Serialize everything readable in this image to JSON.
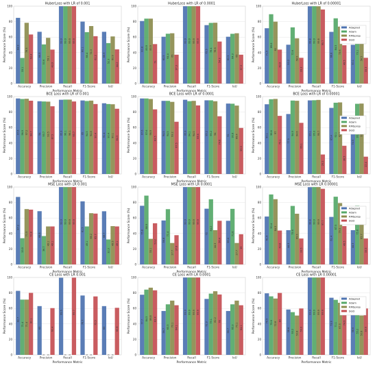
{
  "colors": {
    "Adagrad": "#4c72b0",
    "Adam": "#55a868",
    "RMSprop": "#8c8c4e",
    "SGD": "#c44e52"
  },
  "chart_data": [
    {
      "type": "bar",
      "title": "HuberLoss with LR of 0.001",
      "xlabel": "Performance Metric",
      "ylabel": "Performance Score (%)",
      "ylim": [
        0,
        100
      ],
      "yticks": [
        0,
        20,
        40,
        60,
        80,
        100
      ],
      "categories": [
        "Accuracy",
        "Precision",
        "Recall",
        "F1-Score",
        "IoU"
      ],
      "legend": false,
      "series": [
        {
          "name": "Adagrad",
          "values": [
            84.9,
            66.9,
            99.9,
            80.1,
            66.9
          ]
        },
        {
          "name": "Adam",
          "values": [
            33.1,
            50.6,
            99.9,
            66.4,
            52.3
          ]
        },
        {
          "name": "RMSprop",
          "values": [
            78.5,
            59.1,
            99.9,
            74.3,
            60.9
          ]
        },
        {
          "name": "SGD",
          "values": [
            63.4,
            43.9,
            99.9,
            61.2,
            44.2
          ]
        }
      ]
    },
    {
      "type": "bar",
      "title": "HuberLoss with LR of 0.0001",
      "xlabel": "Performance Metric",
      "ylabel": "Performance Score (%)",
      "ylim": [
        0,
        100
      ],
      "yticks": [
        0,
        20,
        40,
        60,
        80,
        100
      ],
      "categories": [
        "Accuracy",
        "Precision",
        "Recall",
        "F1-Score",
        "IoU"
      ],
      "legend": false,
      "series": [
        {
          "name": "Adagrad",
          "values": [
            80.8,
            60.5,
            99.9,
            75.5,
            60.5
          ]
        },
        {
          "name": "Adam",
          "values": [
            83.9,
            64.4,
            99.9,
            78.4,
            64.3
          ]
        },
        {
          "name": "RMSprop",
          "values": [
            83.9,
            65.0,
            99.9,
            78.6,
            65.0
          ]
        },
        {
          "name": "SGD",
          "values": [
            51.0,
            37.3,
            99.9,
            54.3,
            37.3
          ]
        }
      ]
    },
    {
      "type": "bar",
      "title": "HuberLoss with LR of 0.00001",
      "xlabel": "Performance Metric",
      "ylabel": "Performance Score (%)",
      "ylim": [
        0,
        100
      ],
      "yticks": [
        0,
        20,
        40,
        60,
        80,
        100
      ],
      "categories": [
        "Accuracy",
        "Precision",
        "Recall",
        "F1-Score",
        "IoU"
      ],
      "legend": true,
      "series": [
        {
          "name": "Adagrad",
          "values": [
            71.5,
            50.2,
            99.8,
            66.8,
            50.1
          ]
        },
        {
          "name": "Adam",
          "values": [
            89.6,
            72.6,
            99.9,
            84.3,
            73.1
          ]
        },
        {
          "name": "RMSprop",
          "values": [
            80.0,
            58.5,
            99.8,
            73.6,
            58.5
          ]
        },
        {
          "name": "SGD",
          "values": [
            43.9,
            33.3,
            95.7,
            49.5,
            33.3
          ]
        }
      ]
    },
    {
      "type": "bar",
      "title": "BCE Loss with LR of 0.001",
      "xlabel": "Performance Metric",
      "ylabel": "Performance Score (%)",
      "ylim": [
        0,
        100
      ],
      "yticks": [
        0,
        20,
        40,
        60,
        80,
        100
      ],
      "categories": [
        "Accuracy",
        "Precision",
        "Recall",
        "F1-Score",
        "IoU"
      ],
      "legend": false,
      "series": [
        {
          "name": "Adagrad",
          "values": [
            97.6,
            94.0,
            95.9,
            95.0,
            91.4
          ]
        },
        {
          "name": "Adam",
          "values": [
            96.9,
            93.7,
            96.1,
            94.3,
            90.4
          ]
        },
        {
          "name": "RMSprop",
          "values": [
            97.2,
            93.5,
            96.1,
            94.8,
            90.1
          ]
        },
        {
          "name": "SGD",
          "values": [
            94.7,
            87.5,
            93.7,
            90.4,
            84.3
          ]
        }
      ]
    },
    {
      "type": "bar",
      "title": "BCE Loss with LR of 0.0001",
      "xlabel": "Performance Metric",
      "ylabel": "Performance Score (%)",
      "ylim": [
        0,
        100
      ],
      "yticks": [
        0,
        20,
        40,
        60,
        80,
        100
      ],
      "categories": [
        "Accuracy",
        "Precision",
        "Recall",
        "F1-Score",
        "IoU"
      ],
      "legend": false,
      "series": [
        {
          "name": "Adagrad",
          "values": [
            97.6,
            94.5,
            95.9,
            95.2,
            91.0
          ]
        },
        {
          "name": "Adam",
          "values": [
            97.6,
            94.5,
            94.1,
            95.2,
            90.8
          ]
        },
        {
          "name": "RMSprop",
          "values": [
            96.9,
            93.2,
            94.5,
            94.0,
            88.4
          ]
        },
        {
          "name": "SGD",
          "values": [
            83.5,
            67.5,
            88.6,
            74.6,
            59.5
          ]
        }
      ]
    },
    {
      "type": "bar",
      "title": "BCE Loss with LR of 0.00001",
      "xlabel": "Performance Metric",
      "ylabel": "Performance Score (%)",
      "ylim": [
        0,
        100
      ],
      "yticks": [
        0,
        20,
        40,
        60,
        80,
        100
      ],
      "categories": [
        "Accuracy",
        "Precision",
        "Recall",
        "F1-Score",
        "IoU"
      ],
      "legend": true,
      "series": [
        {
          "name": "Adagrad",
          "values": [
            90.1,
            77.5,
            95.1,
            85.4,
            74.5
          ]
        },
        {
          "name": "Adam",
          "values": [
            96.6,
            94.9,
            95.3,
            92.1,
            90.7
          ]
        },
        {
          "name": "RMSprop",
          "values": [
            97.0,
            94.6,
            95.7,
            92.5,
            91.0
          ]
        },
        {
          "name": "SGD",
          "values": [
            75.1,
            66.1,
            25.2,
            36.5,
            22.4
          ]
        }
      ]
    },
    {
      "type": "bar",
      "title": "MSE Loss with LR 0.001",
      "xlabel": "Performance Metric",
      "ylabel": "Performance Score (%)",
      "ylim": [
        0,
        100
      ],
      "yticks": [
        0,
        20,
        40,
        60,
        80,
        100
      ],
      "categories": [
        "Accuracy",
        "Precision",
        "Recall",
        "F1-Score",
        "IoU"
      ],
      "legend": false,
      "series": [
        {
          "name": "Adagrad",
          "values": [
            87.2,
            68.8,
            99.9,
            81.5,
            68.7
          ]
        },
        {
          "name": "Adam",
          "values": [
            33.9,
            36.7,
            99.9,
            49.1,
            32.3
          ]
        },
        {
          "name": "RMSprop",
          "values": [
            71.5,
            49.1,
            99.9,
            66.2,
            49.5
          ]
        },
        {
          "name": "SGD",
          "values": [
            70.8,
            49.1,
            99.9,
            65.7,
            49.1
          ]
        }
      ]
    },
    {
      "type": "bar",
      "title": "MSE Loss with LR 0.0001",
      "xlabel": "Performance Metric",
      "ylabel": "Performance Score (%)",
      "ylim": [
        0,
        100
      ],
      "yticks": [
        0,
        20,
        40,
        60,
        80,
        100
      ],
      "categories": [
        "Accuracy",
        "Precision",
        "Recall",
        "F1-Score",
        "IoU"
      ],
      "legend": false,
      "series": [
        {
          "name": "Adagrad",
          "values": [
            75.8,
            56.8,
            99.9,
            72.0,
            56.4
          ]
        },
        {
          "name": "Adam",
          "values": [
            88.9,
            71.4,
            99.9,
            84.2,
            71.8
          ]
        },
        {
          "name": "RMSprop",
          "values": [
            33.1,
            27.7,
            99.9,
            44.3,
            27.7
          ]
        },
        {
          "name": "SGD",
          "values": [
            53.2,
            37.8,
            99.9,
            56.4,
            39.0
          ]
        }
      ]
    },
    {
      "type": "bar",
      "title": "MSE Loss with LR 0.00001",
      "xlabel": "Performance Metric",
      "ylabel": "Performance Score (%)",
      "ylim": [
        0,
        100
      ],
      "yticks": [
        0,
        20,
        40,
        60,
        80,
        100
      ],
      "categories": [
        "Accuracy",
        "Precision",
        "Recall",
        "F1-Score",
        "IoU"
      ],
      "legend": true,
      "series": [
        {
          "name": "Adagrad",
          "values": [
            61.9,
            44.3,
            99.8,
            61.4,
            44.3
          ]
        },
        {
          "name": "Adam",
          "values": [
            90.4,
            75.6,
            99.9,
            87.5,
            75.8
          ]
        },
        {
          "name": "RMSprop",
          "values": [
            84.3,
            65.5,
            99.9,
            79.3,
            65.7
          ]
        },
        {
          "name": "SGD",
          "values": [
            43.8,
            33.5,
            97.7,
            49.5,
            33.5
          ]
        }
      ]
    },
    {
      "type": "bar",
      "title": "CE Loss with LR 0.001",
      "xlabel": "Performance Metric",
      "ylabel": "Performance Score (%)",
      "ylim": [
        0,
        100
      ],
      "yticks": [
        0,
        20,
        40,
        60,
        80,
        100
      ],
      "categories": [
        "Accuracy",
        "Precision",
        "Recall",
        "F1-Score",
        "IoU"
      ],
      "legend": false,
      "series": [
        {
          "name": "Adagrad",
          "values": [
            82.7,
            63.0,
            99.6,
            76.7,
            63.0
          ]
        },
        {
          "name": "Adam",
          "values": [
            71.4,
            0.0,
            0.0,
            0.0,
            0.0
          ]
        },
        {
          "name": "RMSprop",
          "values": [
            71.4,
            0.0,
            0.0,
            0.0,
            0.0
          ]
        },
        {
          "name": "SGD",
          "values": [
            80.1,
            60.4,
            99.7,
            75.5,
            60.8
          ]
        }
      ]
    },
    {
      "type": "bar",
      "title": "CE Loss with LR 0.0001",
      "xlabel": "Performance Metric",
      "ylabel": "Performance Score (%)",
      "ylim": [
        0,
        100
      ],
      "yticks": [
        0,
        20,
        40,
        60,
        80,
        100
      ],
      "categories": [
        "Accuracy",
        "Precision",
        "Recall",
        "F1-Score",
        "IoU"
      ],
      "legend": false,
      "series": [
        {
          "name": "Adagrad",
          "values": [
            77.7,
            56.7,
            99.9,
            72.3,
            56.7
          ]
        },
        {
          "name": "Adam",
          "values": [
            84.3,
            65.3,
            99.9,
            79.1,
            65.3
          ]
        },
        {
          "name": "RMSprop",
          "values": [
            86.8,
            70.1,
            99.9,
            82.2,
            70.1
          ]
        },
        {
          "name": "SGD",
          "values": [
            83.4,
            64.1,
            99.9,
            78.0,
            64.1
          ]
        }
      ]
    },
    {
      "type": "bar",
      "title": "CE Loss with LR 0.00001",
      "xlabel": "Performance Metric",
      "ylabel": "Performance Score (%)",
      "ylim": [
        0,
        100
      ],
      "yticks": [
        0,
        20,
        40,
        60,
        80,
        100
      ],
      "categories": [
        "Accuracy",
        "Precision",
        "Recall",
        "F1-Score",
        "IoU"
      ],
      "legend": true,
      "series": [
        {
          "name": "Adagrad",
          "values": [
            79.5,
            58.6,
            99.9,
            73.8,
            58.6
          ]
        },
        {
          "name": "Adam",
          "values": [
            75.6,
            55.2,
            99.9,
            71.1,
            55.2
          ]
        },
        {
          "name": "RMSprop",
          "values": [
            72.8,
            50.8,
            99.9,
            67.3,
            50.8
          ]
        },
        {
          "name": "SGD",
          "values": [
            80.0,
            59.9,
            99.9,
            74.9,
            59.9
          ]
        }
      ]
    }
  ]
}
